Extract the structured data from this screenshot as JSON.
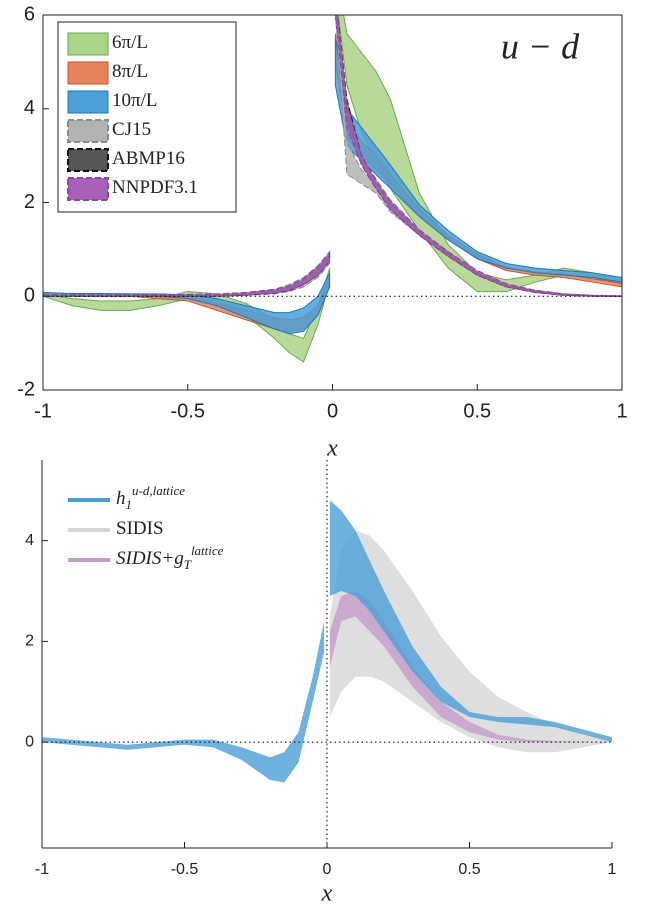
{
  "chart_data": [
    {
      "type": "band",
      "annotation": "u − d",
      "xlabel": "x",
      "xlim": [
        -1,
        1
      ],
      "ylim": [
        -2,
        6
      ],
      "xticks": [
        -1,
        -0.5,
        0,
        0.5,
        1
      ],
      "yticks": [
        -2,
        0,
        2,
        4,
        6
      ],
      "box": true,
      "zero_line_y": true,
      "zero_line_x": false,
      "legend": "upper left",
      "legend_style": "patch",
      "x": [
        -1,
        -0.9,
        -0.8,
        -0.7,
        -0.6,
        -0.5,
        -0.4,
        -0.3,
        -0.2,
        -0.15,
        -0.1,
        -0.05,
        -0.01,
        0,
        0.01,
        0.05,
        0.1,
        0.15,
        0.2,
        0.3,
        0.4,
        0.5,
        0.6,
        0.7,
        0.8,
        0.9,
        1
      ],
      "series": [
        {
          "name": "6π/L",
          "color": "#aad486",
          "edge": "#6aa84f",
          "dashed": false,
          "lower": [
            0,
            -0.2,
            -0.3,
            -0.3,
            -0.2,
            -0.05,
            -0.1,
            -0.4,
            -0.9,
            -1.2,
            -1.4,
            -0.6,
            0.3,
            null,
            6.5,
            4.5,
            3.5,
            2.9,
            2.3,
            1.4,
            0.6,
            0.1,
            0.1,
            0.3,
            0.45,
            0.4,
            0.25
          ],
          "upper": [
            0.05,
            -0.05,
            -0.1,
            -0.1,
            -0.05,
            0.1,
            0.05,
            -0.15,
            -0.5,
            -0.8,
            -0.9,
            -0.2,
            0.6,
            null,
            7,
            5.6,
            5.2,
            4.8,
            4.2,
            2.2,
            1.1,
            0.5,
            0.35,
            0.45,
            0.6,
            0.5,
            0.35
          ]
        },
        {
          "name": "8π/L",
          "color": "#e8825a",
          "edge": "#c9552b",
          "dashed": false,
          "lower": [
            0,
            0,
            0,
            0,
            -0.05,
            -0.1,
            -0.3,
            -0.5,
            -0.7,
            -0.75,
            -0.7,
            -0.4,
            0.2,
            null,
            5,
            3.4,
            3,
            2.7,
            2.4,
            1.7,
            1.2,
            0.8,
            0.55,
            0.45,
            0.4,
            0.3,
            0.2
          ],
          "upper": [
            0.08,
            0.05,
            0.05,
            0.05,
            0.02,
            0,
            -0.15,
            -0.3,
            -0.45,
            -0.5,
            -0.45,
            -0.2,
            0.4,
            null,
            5.6,
            3.8,
            3.3,
            3,
            2.6,
            1.85,
            1.3,
            0.9,
            0.62,
            0.52,
            0.47,
            0.37,
            0.28
          ]
        },
        {
          "name": "10π/L",
          "color": "#4a9fd8",
          "edge": "#1f77b4",
          "dashed": false,
          "lower": [
            0,
            0,
            0,
            0,
            0,
            -0.05,
            -0.2,
            -0.45,
            -0.7,
            -0.8,
            -0.75,
            -0.4,
            0.2,
            null,
            4.5,
            3.2,
            2.9,
            2.6,
            2.3,
            1.7,
            1.2,
            0.8,
            0.6,
            0.5,
            0.45,
            0.4,
            0.3
          ],
          "upper": [
            0.08,
            0.06,
            0.06,
            0.05,
            0.05,
            0.03,
            -0.05,
            -0.2,
            -0.35,
            -0.35,
            -0.25,
            0,
            0.5,
            null,
            5.5,
            4,
            3.6,
            3.2,
            2.8,
            1.95,
            1.4,
            0.95,
            0.7,
            0.6,
            0.55,
            0.5,
            0.4
          ]
        },
        {
          "name": "CJ15",
          "color": "#b3b3b3",
          "edge": "#8a8a8a",
          "dashed": true,
          "lower": [
            0,
            0,
            0,
            0,
            0,
            0,
            0,
            0.02,
            0.05,
            0.1,
            0.2,
            0.4,
            0.7,
            null,
            6,
            2.6,
            2.4,
            2.2,
            1.8,
            1.3,
            0.85,
            0.45,
            0.2,
            0.08,
            0.02,
            0,
            0
          ],
          "upper": [
            0.02,
            0.02,
            0.02,
            0.02,
            0.02,
            0.03,
            0.04,
            0.08,
            0.15,
            0.25,
            0.4,
            0.65,
            0.9,
            null,
            6.5,
            3.3,
            2.7,
            2.4,
            2,
            1.4,
            0.95,
            0.52,
            0.25,
            0.12,
            0.05,
            0.02,
            0.01
          ]
        },
        {
          "name": "ABMP16",
          "color": "#555555",
          "edge": "#111111",
          "dashed": true,
          "lower": [
            0,
            0,
            0,
            0,
            0,
            0,
            0,
            0.02,
            0.07,
            0.12,
            0.25,
            0.45,
            0.75,
            null,
            6,
            3.8,
            2.8,
            2.3,
            1.85,
            1.3,
            0.85,
            0.45,
            0.2,
            0.08,
            0.02,
            0,
            0
          ],
          "upper": [
            0.02,
            0.02,
            0.02,
            0.02,
            0.02,
            0.03,
            0.04,
            0.07,
            0.13,
            0.2,
            0.35,
            0.6,
            0.9,
            null,
            6.5,
            4.2,
            3,
            2.45,
            2,
            1.38,
            0.92,
            0.5,
            0.24,
            0.11,
            0.04,
            0.01,
            0
          ]
        },
        {
          "name": "NNPDF3.1",
          "color": "#a860b8",
          "edge": "#8e44a0",
          "dashed": true,
          "lower": [
            0,
            0,
            0,
            0,
            0,
            0,
            0,
            0.02,
            0.07,
            0.12,
            0.25,
            0.45,
            0.75,
            null,
            6,
            3.6,
            2.8,
            2.3,
            1.85,
            1.3,
            0.85,
            0.45,
            0.2,
            0.08,
            0.02,
            0,
            0
          ],
          "upper": [
            0.03,
            0.03,
            0.03,
            0.03,
            0.03,
            0.04,
            0.05,
            0.08,
            0.15,
            0.22,
            0.38,
            0.65,
            0.95,
            null,
            6.5,
            4.1,
            3,
            2.5,
            2.05,
            1.42,
            0.95,
            0.55,
            0.27,
            0.13,
            0.05,
            0.02,
            0.01
          ]
        }
      ]
    },
    {
      "type": "band",
      "xlabel": "x",
      "xlim": [
        -1,
        1
      ],
      "ylim": [
        -2.1,
        5.6
      ],
      "xticks": [
        -1,
        -0.5,
        0,
        0.5,
        1
      ],
      "yticks": [
        0,
        2,
        4
      ],
      "box": false,
      "zero_line_y": true,
      "zero_line_x": true,
      "legend": "upper left",
      "legend_style": "line",
      "x": [
        -1,
        -0.9,
        -0.8,
        -0.7,
        -0.6,
        -0.5,
        -0.4,
        -0.3,
        -0.2,
        -0.15,
        -0.1,
        -0.05,
        -0.01,
        0,
        0.01,
        0.05,
        0.1,
        0.15,
        0.2,
        0.3,
        0.4,
        0.5,
        0.6,
        0.7,
        0.8,
        0.9,
        1
      ],
      "series": [
        {
          "name": "h",
          "name_sub": "1",
          "name_sup": "u-d,lattice",
          "color": "#4a9fd8",
          "lower": [
            0,
            -0.05,
            -0.1,
            -0.15,
            -0.1,
            -0.05,
            -0.1,
            -0.35,
            -0.75,
            -0.8,
            -0.4,
            0.8,
            1.8,
            null,
            2.9,
            3,
            2.9,
            2.6,
            2.2,
            1.4,
            0.8,
            0.5,
            0.4,
            0.35,
            0.3,
            0.15,
            0
          ],
          "upper": [
            0.1,
            0.05,
            0,
            -0.05,
            0,
            0.05,
            0.05,
            -0.1,
            -0.3,
            -0.2,
            0.2,
            1.3,
            2.4,
            null,
            4.8,
            4.6,
            4.2,
            3.6,
            3,
            1.9,
            1.1,
            0.6,
            0.5,
            0.5,
            0.4,
            0.25,
            0.1
          ]
        },
        {
          "name": "SIDIS",
          "color": "#d6d6d6",
          "lower": [
            null,
            null,
            null,
            null,
            null,
            null,
            null,
            null,
            null,
            null,
            null,
            null,
            null,
            null,
            0.5,
            1,
            1.3,
            1.3,
            1.2,
            0.8,
            0.4,
            0.1,
            -0.1,
            -0.2,
            -0.2,
            -0.1,
            0
          ],
          "upper": [
            null,
            null,
            null,
            null,
            null,
            null,
            null,
            null,
            null,
            null,
            null,
            null,
            null,
            null,
            2.5,
            3.8,
            4.2,
            4.1,
            3.8,
            3,
            2.1,
            1.4,
            0.9,
            0.6,
            0.35,
            0.15,
            0
          ]
        },
        {
          "name": "SIDIS+g",
          "name_sub": "T",
          "name_sup": "lattice",
          "color": "#c39bc9",
          "lower": [
            null,
            null,
            null,
            null,
            null,
            null,
            null,
            null,
            null,
            null,
            null,
            null,
            null,
            null,
            1.5,
            2.4,
            2.5,
            2.2,
            1.9,
            1.1,
            0.5,
            0.2,
            0.05,
            0,
            0,
            0,
            0
          ],
          "upper": [
            null,
            null,
            null,
            null,
            null,
            null,
            null,
            null,
            null,
            null,
            null,
            null,
            null,
            null,
            2.2,
            2.9,
            3,
            2.8,
            2.4,
            1.5,
            0.8,
            0.4,
            0.15,
            0.05,
            0.02,
            0.01,
            0
          ]
        }
      ]
    }
  ]
}
